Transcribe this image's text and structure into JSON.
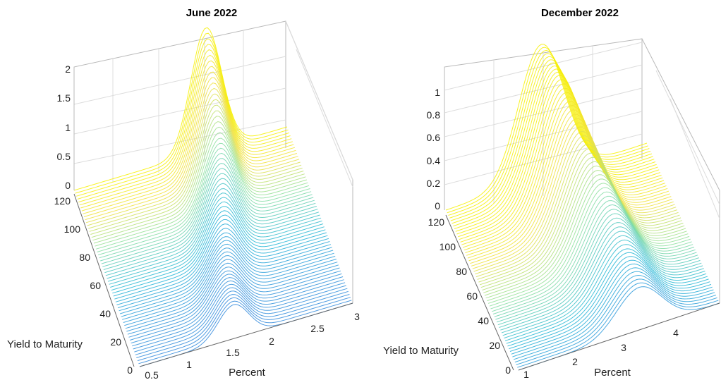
{
  "chart_data": [
    {
      "type": "surface",
      "title": "June 2022",
      "xlabel": "Percent",
      "ylabel": "Yield to Maturity",
      "zlabel": "",
      "x_ticks": [
        "0.5",
        "1",
        "1.5",
        "2",
        "2.5",
        "3"
      ],
      "y_ticks": [
        "0",
        "20",
        "40",
        "60",
        "80",
        "100",
        "120"
      ],
      "z_ticks": [
        "0",
        "0.5",
        "1",
        "1.5",
        "2"
      ],
      "xlim": [
        0.5,
        3
      ],
      "ylim": [
        0,
        120
      ],
      "zlim": [
        0,
        2
      ],
      "colormap": [
        "#5b3fd0",
        "#3b6ee0",
        "#22b6d6",
        "#8ee0a0",
        "#f0e040",
        "#f7f000"
      ],
      "series": [
        {
          "y": 0,
          "peak_x": 1.6,
          "peak_z": 0.55
        },
        {
          "y": 20,
          "peak_x": 1.65,
          "peak_z": 0.6
        },
        {
          "y": 40,
          "peak_x": 1.75,
          "peak_z": 0.7
        },
        {
          "y": 60,
          "peak_x": 1.85,
          "peak_z": 0.9
        },
        {
          "y": 80,
          "peak_x": 1.95,
          "peak_z": 1.2
        },
        {
          "y": 100,
          "peak_x": 2.0,
          "peak_z": 1.6
        },
        {
          "y": 120,
          "peak_x": 2.05,
          "peak_z": 2.0
        }
      ]
    },
    {
      "type": "surface",
      "title": "December 2022",
      "xlabel": "Percent",
      "ylabel": "Yield to Maturity",
      "zlabel": "",
      "x_ticks": [
        "1",
        "2",
        "3",
        "4"
      ],
      "y_ticks": [
        "0",
        "20",
        "40",
        "60",
        "80",
        "100",
        "120"
      ],
      "z_ticks": [
        "0",
        "0.2",
        "0.4",
        "0.6",
        "0.8",
        "1"
      ],
      "xlim": [
        1,
        5
      ],
      "ylim": [
        0,
        120
      ],
      "zlim": [
        0,
        1.1
      ],
      "colormap": [
        "#5b3fd0",
        "#3b6ee0",
        "#22b6d6",
        "#8ee0a0",
        "#f0e040",
        "#f7f000"
      ],
      "series": [
        {
          "y": 0,
          "peak_x": 3.4,
          "peak_z": 0.35
        },
        {
          "y": 20,
          "peak_x": 3.35,
          "peak_z": 0.45
        },
        {
          "y": 40,
          "peak_x": 3.3,
          "peak_z": 0.6
        },
        {
          "y": 60,
          "peak_x": 3.2,
          "peak_z": 0.75
        },
        {
          "y": 80,
          "peak_x": 3.1,
          "peak_z": 0.9
        },
        {
          "y": 100,
          "peak_x": 3.0,
          "peak_z": 1.05
        },
        {
          "y": 120,
          "peak_x": 2.9,
          "peak_z": 1.1
        }
      ]
    }
  ]
}
